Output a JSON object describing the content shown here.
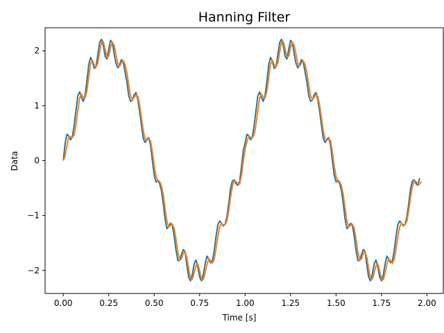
{
  "chart_data": {
    "type": "line",
    "title": "Hanning Filter",
    "xlabel": "Time [s]",
    "ylabel": "Data",
    "xlim": [
      -0.1,
      2.09
    ],
    "ylim": [
      -2.42,
      2.42
    ],
    "xticks": [
      0.0,
      0.25,
      0.5,
      0.75,
      1.0,
      1.25,
      1.5,
      1.75,
      2.0
    ],
    "xtick_labels": [
      "0.00",
      "0.25",
      "0.50",
      "0.75",
      "1.00",
      "1.25",
      "1.50",
      "1.75",
      "2.00"
    ],
    "yticks": [
      -2,
      -1,
      0,
      1,
      2
    ],
    "ytick_labels": [
      "−2",
      "−1",
      "0",
      "1",
      "2"
    ],
    "grid": false,
    "legend": "none",
    "x": {
      "start": 0,
      "stop": 1.99,
      "step": 0.01
    },
    "series": [
      {
        "color": "#1f77b4",
        "values": [
          0.0,
          0.31,
          0.48,
          0.45,
          0.38,
          0.43,
          0.65,
          0.92,
          1.18,
          1.25,
          1.15,
          1.08,
          1.19,
          1.45,
          1.75,
          1.88,
          1.81,
          1.68,
          1.7,
          1.93,
          2.15,
          2.21,
          2.1,
          1.9,
          1.85,
          2.03,
          2.19,
          2.15,
          1.94,
          1.77,
          1.69,
          1.75,
          1.84,
          1.79,
          1.61,
          1.43,
          1.18,
          1.08,
          1.1,
          1.2,
          1.24,
          1.11,
          0.89,
          0.64,
          0.4,
          0.33,
          0.39,
          0.42,
          0.28,
          0.0,
          -0.26,
          -0.39,
          -0.36,
          -0.42,
          -0.55,
          -0.79,
          -1.07,
          -1.24,
          -1.2,
          -1.14,
          -1.18,
          -1.38,
          -1.63,
          -1.82,
          -1.82,
          -1.71,
          -1.62,
          -1.66,
          -1.92,
          -2.13,
          -2.19,
          -2.07,
          -1.88,
          -1.81,
          -1.94,
          -2.12,
          -2.19,
          -2.08,
          -1.88,
          -1.74,
          -1.79,
          -1.86,
          -1.83,
          -1.64,
          -1.38,
          -1.17,
          -1.1,
          -1.14,
          -1.19,
          -1.16,
          -1.02,
          -0.78,
          -0.51,
          -0.37,
          -0.35,
          -0.42,
          -0.45,
          -0.38,
          -0.11,
          0.18,
          0.32,
          0.48,
          0.45,
          0.38,
          0.43,
          0.65,
          0.92,
          1.18,
          1.25,
          1.15,
          1.08,
          1.19,
          1.45,
          1.75,
          1.88,
          1.81,
          1.68,
          1.7,
          1.93,
          2.15,
          2.21,
          2.1,
          1.9,
          1.85,
          2.03,
          2.19,
          2.15,
          1.94,
          1.77,
          1.69,
          1.75,
          1.84,
          1.79,
          1.61,
          1.43,
          1.18,
          1.08,
          1.1,
          1.2,
          1.24,
          1.11,
          0.89,
          0.64,
          0.4,
          0.33,
          0.39,
          0.42,
          0.28,
          0.0,
          -0.26,
          -0.39,
          -0.36,
          -0.42,
          -0.55,
          -0.79,
          -1.07,
          -1.24,
          -1.2,
          -1.14,
          -1.18,
          -1.38,
          -1.63,
          -1.82,
          -1.82,
          -1.71,
          -1.62,
          -1.66,
          -1.92,
          -2.13,
          -2.19,
          -2.07,
          -1.88,
          -1.81,
          -1.94,
          -2.12,
          -2.19,
          -2.08,
          -1.88,
          -1.74,
          -1.79,
          -1.86,
          -1.83,
          -1.64,
          -1.38,
          -1.17,
          -1.1,
          -1.14,
          -1.19,
          -1.16,
          -1.02,
          -0.78,
          -0.51,
          -0.37,
          -0.35,
          -0.42,
          -0.45,
          -0.32
        ]
      },
      {
        "color": "#ff7f0e",
        "values": [
          0.0,
          0.08,
          0.28,
          0.43,
          0.44,
          0.42,
          0.47,
          0.66,
          0.92,
          1.14,
          1.21,
          1.15,
          1.14,
          1.27,
          1.52,
          1.76,
          1.83,
          1.75,
          1.7,
          1.78,
          1.98,
          2.15,
          2.17,
          2.03,
          1.89,
          1.9,
          2.06,
          2.16,
          2.1,
          1.93,
          1.77,
          1.72,
          1.78,
          1.82,
          1.75,
          1.6,
          1.38,
          1.18,
          1.11,
          1.15,
          1.2,
          1.17,
          1.01,
          0.78,
          0.54,
          0.4,
          0.37,
          0.4,
          0.36,
          0.16,
          -0.09,
          -0.29,
          -0.36,
          -0.38,
          -0.46,
          -0.62,
          -0.87,
          -1.1,
          -1.21,
          -1.18,
          -1.16,
          -1.23,
          -1.43,
          -1.66,
          -1.81,
          -1.79,
          -1.69,
          -1.66,
          -1.77,
          -1.98,
          -2.14,
          -2.16,
          -2.04,
          -1.91,
          -1.88,
          -2.01,
          -2.15,
          -2.17,
          -2.05,
          -1.89,
          -1.79,
          -1.82,
          -1.87,
          -1.8,
          -1.61,
          -1.38,
          -1.21,
          -1.14,
          -1.17,
          -1.17,
          -1.1,
          -0.91,
          -0.67,
          -0.47,
          -0.37,
          -0.38,
          -0.42,
          -0.43,
          -0.27,
          -0.01,
          0.2,
          0.35,
          0.44,
          0.43,
          0.42,
          0.47,
          0.66,
          0.92,
          1.14,
          1.21,
          1.15,
          1.14,
          1.27,
          1.52,
          1.76,
          1.83,
          1.75,
          1.7,
          1.78,
          1.98,
          2.15,
          2.17,
          2.03,
          1.89,
          1.9,
          2.06,
          2.16,
          2.1,
          1.93,
          1.77,
          1.72,
          1.78,
          1.82,
          1.75,
          1.6,
          1.38,
          1.18,
          1.11,
          1.15,
          1.2,
          1.17,
          1.01,
          0.78,
          0.54,
          0.4,
          0.37,
          0.4,
          0.36,
          0.16,
          -0.09,
          -0.29,
          -0.36,
          -0.38,
          -0.46,
          -0.62,
          -0.87,
          -1.1,
          -1.21,
          -1.18,
          -1.16,
          -1.23,
          -1.43,
          -1.66,
          -1.81,
          -1.79,
          -1.69,
          -1.66,
          -1.77,
          -1.98,
          -2.14,
          -2.16,
          -2.04,
          -1.91,
          -1.88,
          -2.01,
          -2.15,
          -2.17,
          -2.05,
          -1.89,
          -1.79,
          -1.82,
          -1.87,
          -1.8,
          -1.61,
          -1.38,
          -1.21,
          -1.14,
          -1.17,
          -1.17,
          -1.1,
          -0.91,
          -0.67,
          -0.47,
          -0.37,
          -0.38,
          -0.42,
          -0.43,
          -0.38
        ]
      }
    ]
  }
}
